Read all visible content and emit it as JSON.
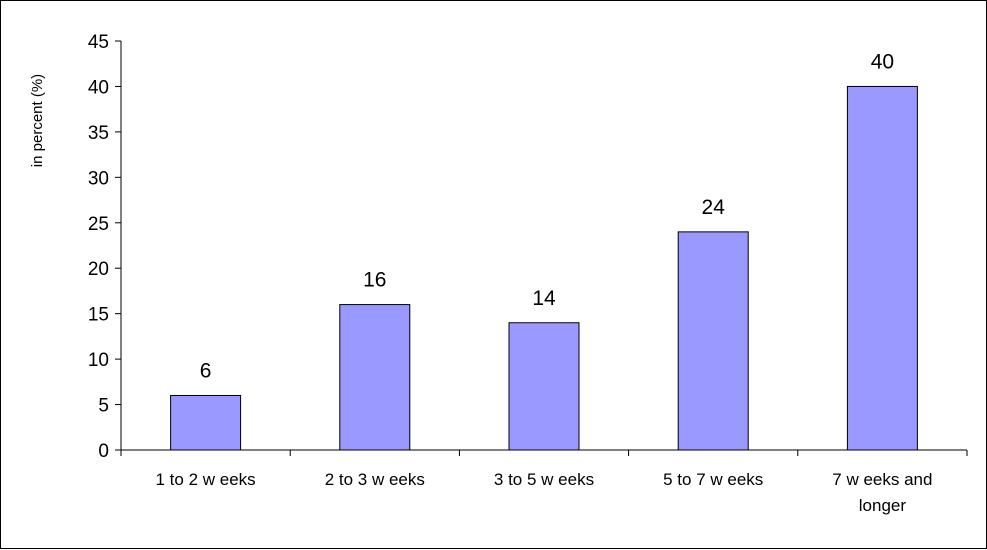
{
  "chart_data": {
    "type": "bar",
    "title": "",
    "xlabel": "",
    "ylabel": "in percent (%)",
    "categories": [
      "1 to 2 w eeks",
      "2 to 3 w eeks",
      "3 to 5 w eeks",
      "5 to 7 w eeks",
      [
        "7 w eeks and",
        "longer"
      ]
    ],
    "values": [
      6,
      16,
      14,
      24,
      40
    ],
    "ylim": [
      0,
      45
    ],
    "yticks": [
      0,
      5,
      10,
      15,
      20,
      25,
      30,
      35,
      40,
      45
    ],
    "grid": false,
    "legend": "none",
    "data_labels": true,
    "colors": {
      "bar_fill": "#9999ff",
      "bar_stroke": "#000000",
      "axis": "#000000"
    }
  }
}
